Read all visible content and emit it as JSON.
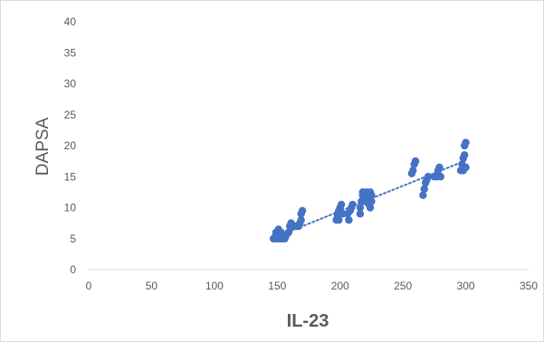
{
  "chart_data": {
    "type": "scatter",
    "title": "",
    "xlabel": "IL-23",
    "ylabel": "DAPSA",
    "xlim": [
      0,
      350
    ],
    "ylim": [
      0,
      40
    ],
    "x_ticks": [
      "0",
      "50",
      "100",
      "150",
      "200",
      "250",
      "300",
      "350"
    ],
    "y_ticks": [
      "0",
      "5",
      "10",
      "15",
      "20",
      "25",
      "30",
      "35",
      "40"
    ],
    "grid": false,
    "legend": "none",
    "trendline": {
      "type": "linear",
      "style": "dotted",
      "x_range": [
        148,
        300
      ],
      "y_range": [
        5.2,
        17.6
      ]
    },
    "colors": {
      "marker": "#4472c4",
      "trendline": "#4472c4",
      "axis": "#d9d9d9",
      "text": "#595959"
    },
    "series": [
      {
        "points": [
          [
            147,
            5
          ],
          [
            148,
            5
          ],
          [
            149,
            5.5
          ],
          [
            149,
            6
          ],
          [
            150,
            5
          ],
          [
            151,
            5.5
          ],
          [
            151,
            6.5
          ],
          [
            152,
            5
          ],
          [
            153,
            5
          ],
          [
            153,
            6
          ],
          [
            154,
            5
          ],
          [
            155,
            5.5
          ],
          [
            156,
            5
          ],
          [
            157,
            5.5
          ],
          [
            159,
            6
          ],
          [
            160,
            7
          ],
          [
            161,
            7.5
          ],
          [
            162,
            7
          ],
          [
            163,
            7
          ],
          [
            164,
            7
          ],
          [
            165,
            7
          ],
          [
            166,
            7
          ],
          [
            167,
            7
          ],
          [
            168,
            7.5
          ],
          [
            169,
            8
          ],
          [
            169,
            9
          ],
          [
            170,
            9.5
          ],
          [
            197,
            8
          ],
          [
            198,
            8.5
          ],
          [
            198,
            9
          ],
          [
            199,
            8
          ],
          [
            199,
            9.5
          ],
          [
            200,
            9
          ],
          [
            200,
            10
          ],
          [
            201,
            10.5
          ],
          [
            202,
            9
          ],
          [
            206,
            9
          ],
          [
            207,
            8
          ],
          [
            208,
            9.5
          ],
          [
            209,
            10
          ],
          [
            210,
            10.5
          ],
          [
            216,
            9
          ],
          [
            216,
            10
          ],
          [
            217,
            11
          ],
          [
            218,
            12
          ],
          [
            218,
            12.5
          ],
          [
            219,
            11.5
          ],
          [
            220,
            12
          ],
          [
            220,
            11
          ],
          [
            221,
            12.5
          ],
          [
            222,
            11
          ],
          [
            222,
            12
          ],
          [
            223,
            11.5
          ],
          [
            223,
            10.5
          ],
          [
            224,
            12.5
          ],
          [
            224,
            10
          ],
          [
            225,
            11
          ],
          [
            225,
            12
          ],
          [
            257,
            15.5
          ],
          [
            258,
            16
          ],
          [
            259,
            17
          ],
          [
            260,
            17.5
          ],
          [
            266,
            12
          ],
          [
            267,
            13
          ],
          [
            268,
            14
          ],
          [
            269,
            14.5
          ],
          [
            270,
            15
          ],
          [
            275,
            15
          ],
          [
            277,
            15
          ],
          [
            278,
            16
          ],
          [
            279,
            16.5
          ],
          [
            280,
            15
          ],
          [
            296,
            16
          ],
          [
            297,
            17
          ],
          [
            298,
            18
          ],
          [
            298,
            16
          ],
          [
            299,
            20
          ],
          [
            299,
            18.5
          ],
          [
            300,
            20.5
          ],
          [
            300,
            16.5
          ]
        ]
      }
    ]
  }
}
